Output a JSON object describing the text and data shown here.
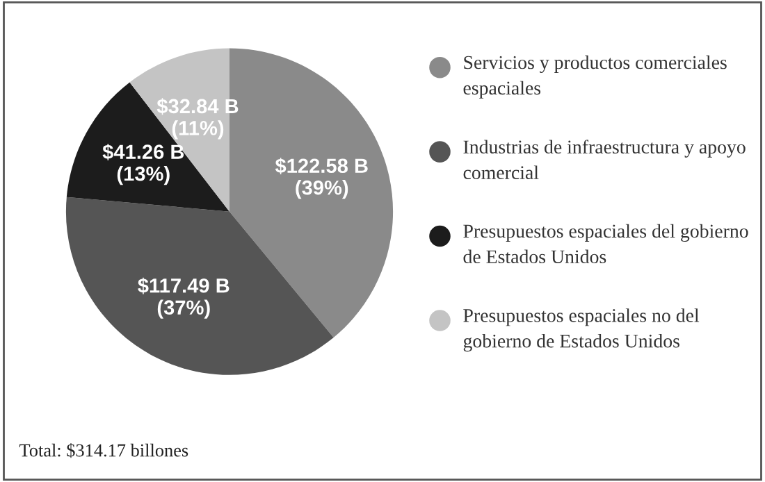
{
  "chart_data": {
    "type": "pie",
    "categories": [
      "Servicios y productos comerciales espaciales",
      "Industrias de infraestructura y apoyo comercial",
      "Presupuestos espaciales del gobierno de Estados Unidos",
      "Presupuestos espaciales no del gobierno de Estados Unidos"
    ],
    "values": [
      122.58,
      117.49,
      41.26,
      32.84
    ],
    "value_labels": [
      "$122.58 B\n(39%)",
      "$117.49 B\n(37%)",
      "$41.26 B\n(13%)",
      "$32.84 B\n(11%)"
    ],
    "colors": [
      "#8a8a8a",
      "#555555",
      "#1c1c1c",
      "#c4c4c4"
    ],
    "legend": "right",
    "annotations": [
      "Total: $314.17 billones"
    ]
  }
}
